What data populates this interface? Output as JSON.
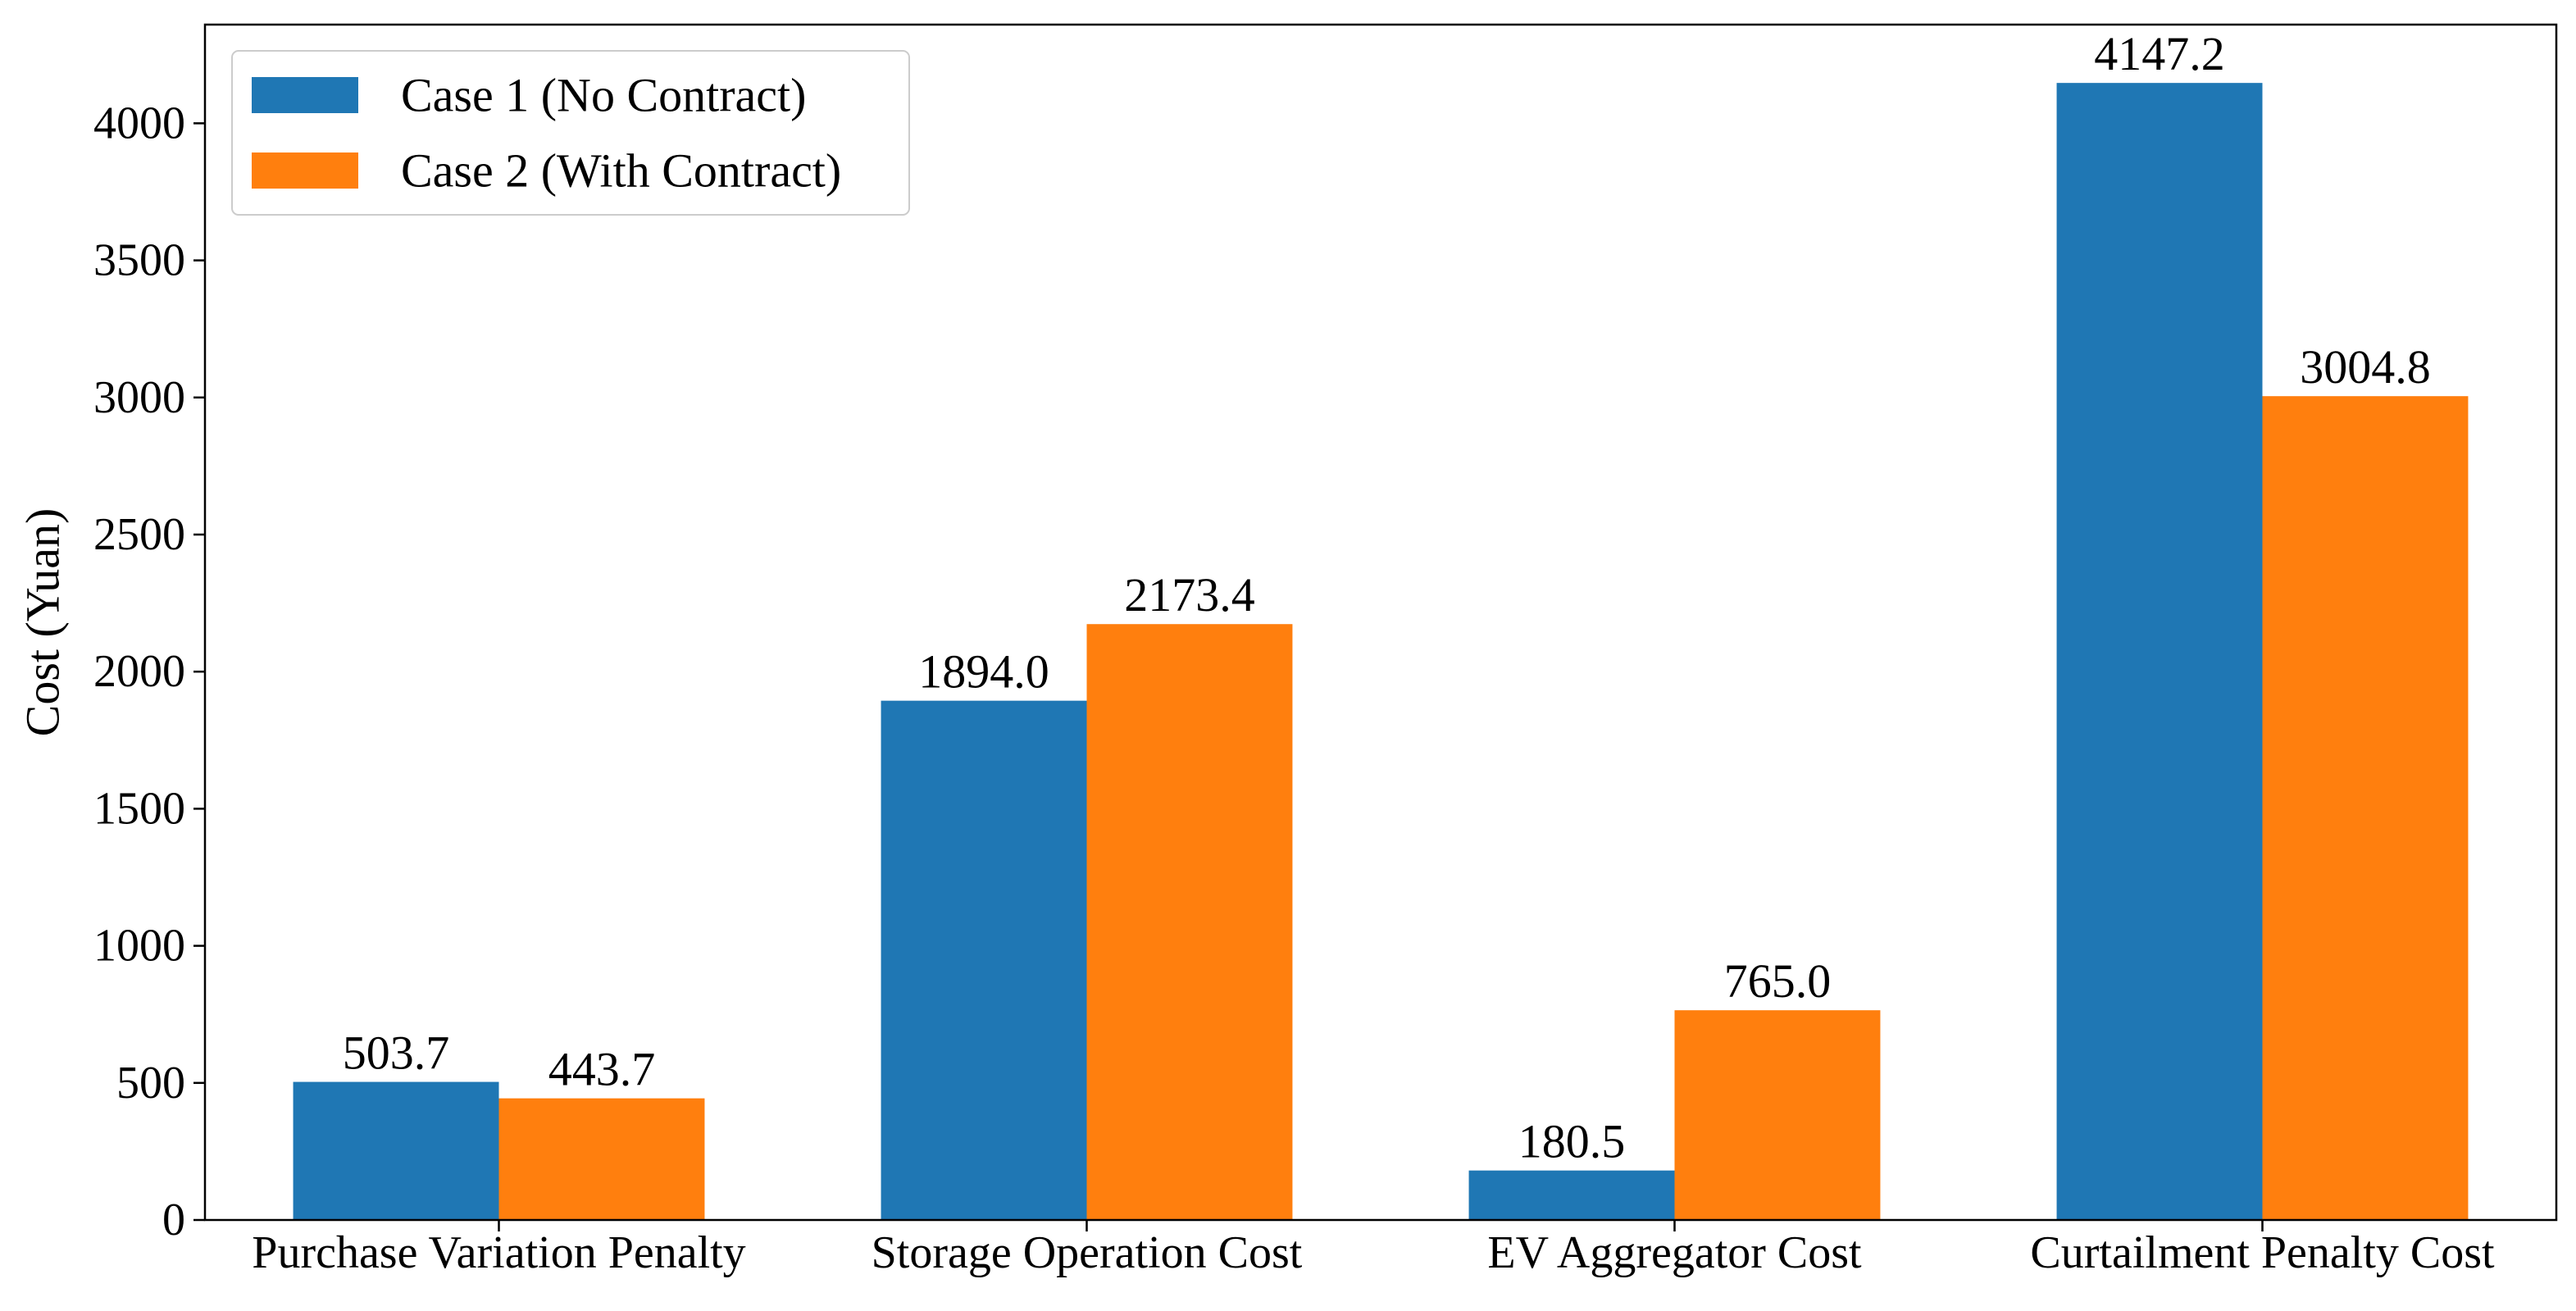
{
  "chart_data": {
    "type": "bar",
    "categories": [
      "Purchase Variation Penalty",
      "Storage Operation Cost",
      "EV Aggregator Cost",
      "Curtailment Penalty Cost"
    ],
    "series": [
      {
        "name": "Case 1 (No Contract)",
        "values": [
          503.7,
          1894.0,
          180.5,
          4147.2
        ],
        "labels": [
          "503.7",
          "1894.0",
          "180.5",
          "4147.2"
        ],
        "color": "#1f77b4"
      },
      {
        "name": "Case 2 (With Contract)",
        "values": [
          443.7,
          2173.4,
          765.0,
          3004.8
        ],
        "labels": [
          "443.7",
          "2173.4",
          "765.0",
          "3004.8"
        ],
        "color": "#ff7f0e"
      }
    ],
    "ylabel": "Cost (Yuan)",
    "xlabel": "",
    "title": "",
    "ylim": [
      0,
      4360
    ],
    "yticks": [
      0,
      500,
      1000,
      1500,
      2000,
      2500,
      3000,
      3500,
      4000
    ],
    "ytick_labels": [
      "0",
      "500",
      "1000",
      "1500",
      "2000",
      "2500",
      "3000",
      "3500",
      "4000"
    ],
    "grid": false,
    "legend_position": "top-left"
  }
}
